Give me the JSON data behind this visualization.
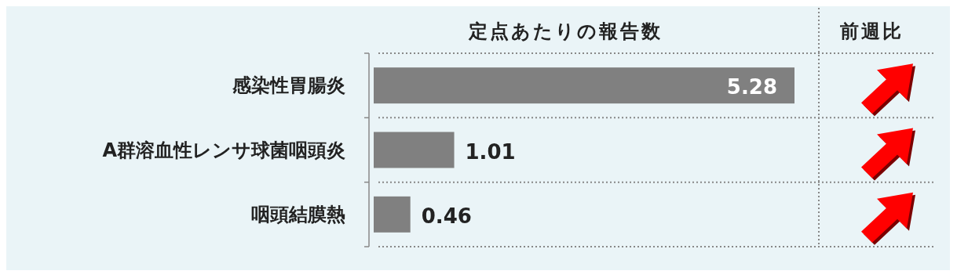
{
  "chart_data": {
    "type": "bar",
    "orientation": "horizontal",
    "title": "定点あたりの報告数",
    "categories": [
      "感染性胃腸炎",
      "A群溶血性レンサ球菌咽頭炎",
      "咽頭結膜熱"
    ],
    "values": [
      5.28,
      1.01,
      0.46
    ],
    "color": "#808080",
    "data_labels": true,
    "annotations": [
      "前週比"
    ]
  }
}
